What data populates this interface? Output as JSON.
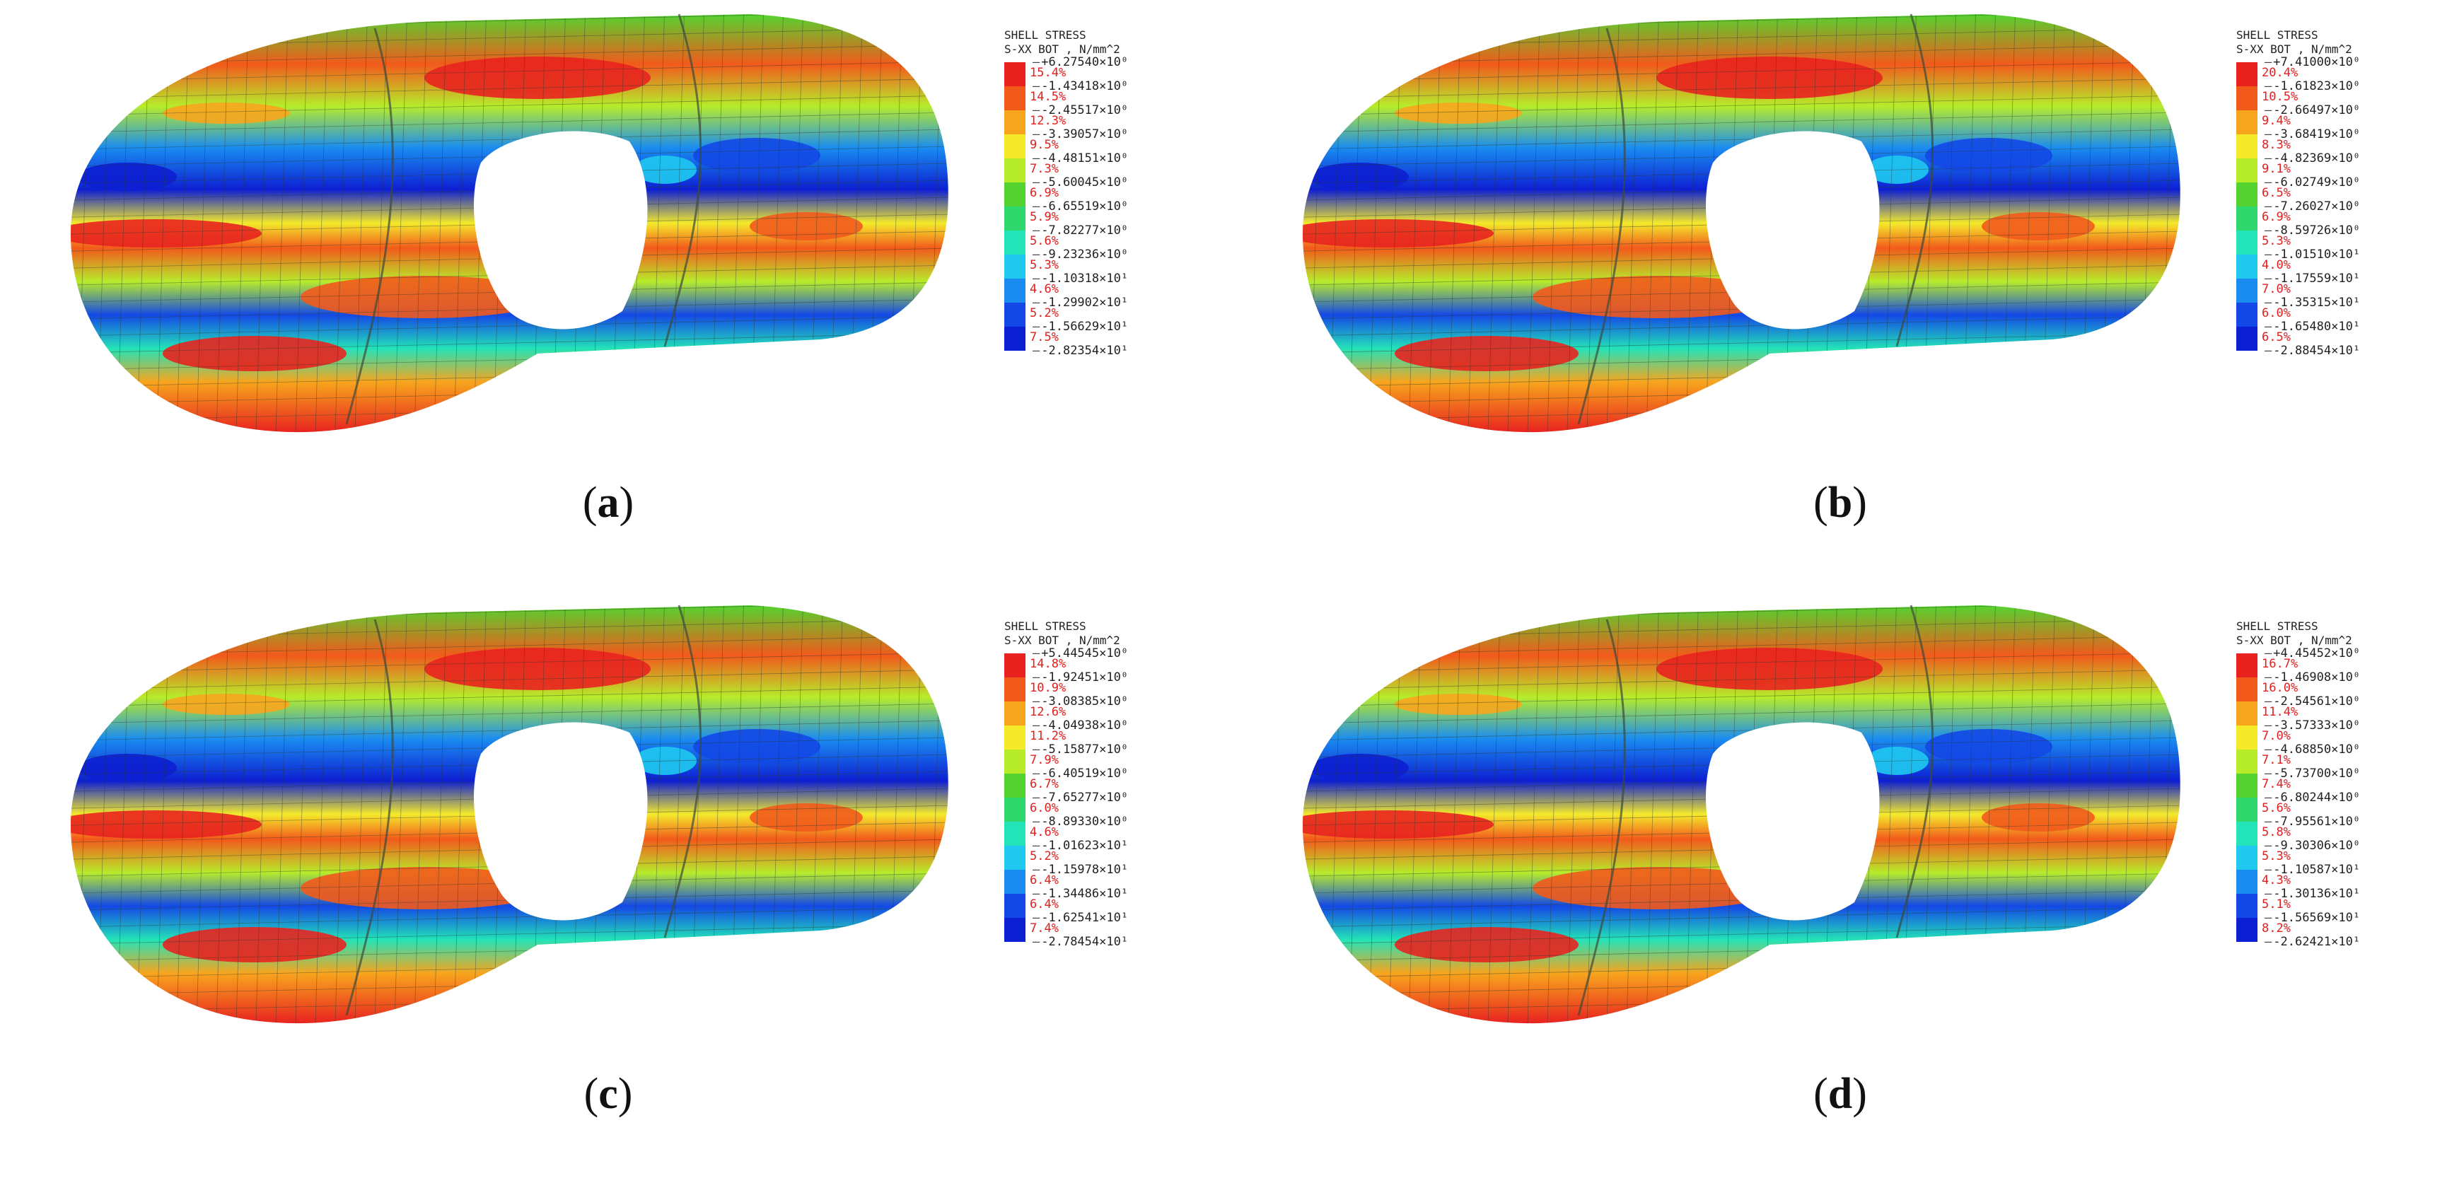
{
  "colors": [
    "#e8231f",
    "#f25a1c",
    "#f8a51e",
    "#f4ea2a",
    "#b7ec2b",
    "#54d330",
    "#2ed86c",
    "#23e3b8",
    "#1fc9ef",
    "#1a8cf0",
    "#1348e6",
    "#0d1fd2"
  ],
  "panels": [
    {
      "label_letter": "a",
      "legend_title_1": "SHELL STRESS",
      "legend_title_2": "S-XX BOT , N/mm^2",
      "values": [
        "+6.27540×10⁰",
        "-1.43418×10⁰",
        "-2.45517×10⁰",
        "-3.39057×10⁰",
        "-4.48151×10⁰",
        "-5.60045×10⁰",
        "-6.65519×10⁰",
        "-7.82277×10⁰",
        "-9.23236×10⁰",
        "-1.10318×10¹",
        "-1.29902×10¹",
        "-1.56629×10¹",
        "-2.82354×10¹"
      ],
      "percents": [
        "15.4%",
        "14.5%",
        "12.3%",
        "9.5%",
        "7.3%",
        "6.9%",
        "5.9%",
        "5.6%",
        "5.3%",
        "4.6%",
        "5.2%",
        "7.5%"
      ]
    },
    {
      "label_letter": "b",
      "legend_title_1": "SHELL STRESS",
      "legend_title_2": "S-XX BOT , N/mm^2",
      "values": [
        "+7.41000×10⁰",
        "-1.61823×10⁰",
        "-2.66497×10⁰",
        "-3.68419×10⁰",
        "-4.82369×10⁰",
        "-6.02749×10⁰",
        "-7.26027×10⁰",
        "-8.59726×10⁰",
        "-1.01510×10¹",
        "-1.17559×10¹",
        "-1.35315×10¹",
        "-1.65480×10¹",
        "-2.88454×10¹"
      ],
      "percents": [
        "20.4%",
        "10.5%",
        "9.4%",
        "8.3%",
        "9.1%",
        "6.5%",
        "6.9%",
        "5.3%",
        "4.0%",
        "7.0%",
        "6.0%",
        "6.5%"
      ]
    },
    {
      "label_letter": "c",
      "legend_title_1": "SHELL STRESS",
      "legend_title_2": "S-XX BOT , N/mm^2",
      "values": [
        "+5.44545×10⁰",
        "-1.92451×10⁰",
        "-3.08385×10⁰",
        "-4.04938×10⁰",
        "-5.15877×10⁰",
        "-6.40519×10⁰",
        "-7.65277×10⁰",
        "-8.89330×10⁰",
        "-1.01623×10¹",
        "-1.15978×10¹",
        "-1.34486×10¹",
        "-1.62541×10¹",
        "-2.78454×10¹"
      ],
      "percents": [
        "14.8%",
        "10.9%",
        "12.6%",
        "11.2%",
        "7.9%",
        "6.7%",
        "6.0%",
        "4.6%",
        "5.2%",
        "6.4%",
        "6.4%",
        "7.4%"
      ]
    },
    {
      "label_letter": "d",
      "legend_title_1": "SHELL STRESS",
      "legend_title_2": "S-XX BOT , N/mm^2",
      "values": [
        "+4.45452×10⁰",
        "-1.46908×10⁰",
        "-2.54561×10⁰",
        "-3.57333×10⁰",
        "-4.68850×10⁰",
        "-5.73700×10⁰",
        "-6.80244×10⁰",
        "-7.95561×10⁰",
        "-9.30306×10⁰",
        "-1.10587×10¹",
        "-1.30136×10¹",
        "-1.56569×10¹",
        "-2.62421×10¹"
      ],
      "percents": [
        "16.7%",
        "16.0%",
        "11.4%",
        "7.0%",
        "7.1%",
        "7.4%",
        "5.6%",
        "5.8%",
        "5.3%",
        "4.3%",
        "5.1%",
        "8.2%"
      ]
    }
  ]
}
